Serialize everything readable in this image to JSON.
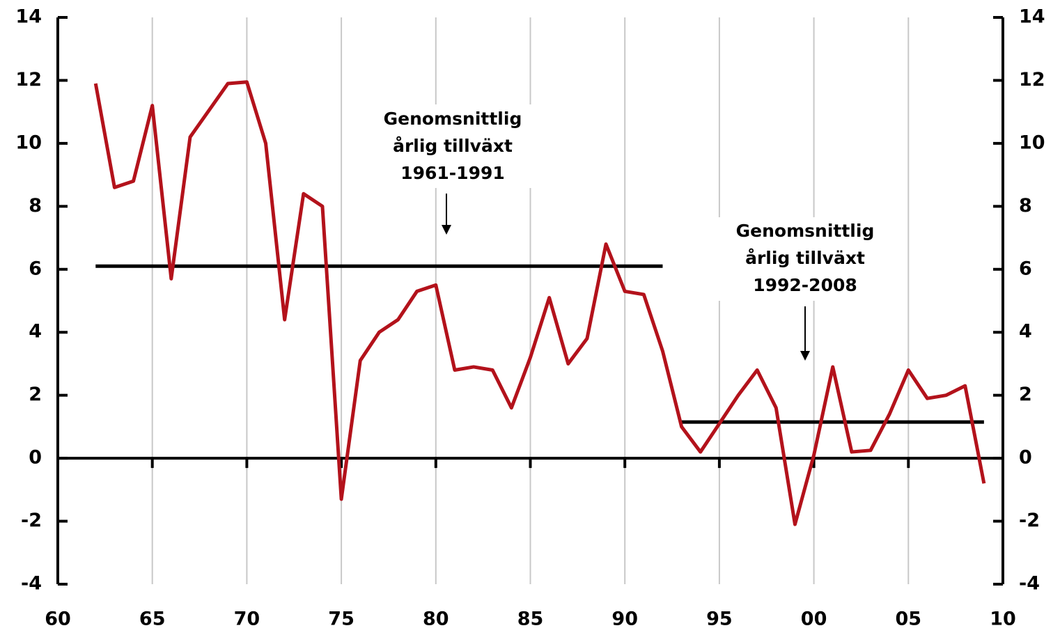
{
  "chart_data": {
    "type": "line",
    "x": [
      1962,
      1963,
      1964,
      1965,
      1966,
      1967,
      1968,
      1969,
      1970,
      1971,
      1972,
      1973,
      1974,
      1975,
      1976,
      1977,
      1978,
      1979,
      1980,
      1981,
      1982,
      1983,
      1984,
      1985,
      1986,
      1987,
      1988,
      1989,
      1990,
      1991,
      1992,
      1993,
      1994,
      1995,
      1996,
      1997,
      1998,
      1999,
      2000,
      2001,
      2002,
      2003,
      2004,
      2005,
      2006,
      2007,
      2008,
      2009
    ],
    "series": [
      {
        "color": "#b3121b",
        "values": [
          11.9,
          8.6,
          8.8,
          11.2,
          5.7,
          10.2,
          11.05,
          11.9,
          11.95,
          10.0,
          4.4,
          8.4,
          8.0,
          -1.3,
          3.1,
          4.0,
          4.4,
          5.3,
          5.5,
          2.8,
          2.9,
          2.8,
          1.6,
          3.2,
          5.1,
          3.0,
          3.8,
          6.8,
          5.3,
          5.2,
          3.4,
          1.0,
          0.2,
          1.1,
          2.0,
          2.8,
          1.6,
          -2.1,
          0.1,
          2.9,
          0.2,
          0.25,
          1.4,
          2.8,
          1.9,
          2.0,
          2.3,
          -0.8
        ]
      }
    ],
    "averages": [
      {
        "x": [
          1962,
          1992
        ],
        "value": 6.1
      },
      {
        "x": [
          1993,
          2009
        ],
        "value": 1.15
      }
    ],
    "annotations": [
      {
        "lines": [
          "Genomsnittlig",
          "årlig tillväxt",
          "1961-1991"
        ]
      },
      {
        "lines": [
          "Genomsnittlig",
          "årlig tillväxt",
          "1992-2008"
        ]
      }
    ],
    "xlim": [
      1960,
      2010
    ],
    "xticks": [
      {
        "value": 1960,
        "label": "60"
      },
      {
        "value": 1965,
        "label": "65"
      },
      {
        "value": 1970,
        "label": "70"
      },
      {
        "value": 1975,
        "label": "75"
      },
      {
        "value": 1980,
        "label": "80"
      },
      {
        "value": 1985,
        "label": "85"
      },
      {
        "value": 1990,
        "label": "90"
      },
      {
        "value": 1995,
        "label": "95"
      },
      {
        "value": 2000,
        "label": "00"
      },
      {
        "value": 2005,
        "label": "05"
      },
      {
        "value": 2010,
        "label": "10"
      }
    ],
    "ylim": [
      -4,
      14
    ],
    "yticks": [
      -4,
      -2,
      0,
      2,
      4,
      6,
      8,
      10,
      12,
      14
    ],
    "grid": true
  }
}
